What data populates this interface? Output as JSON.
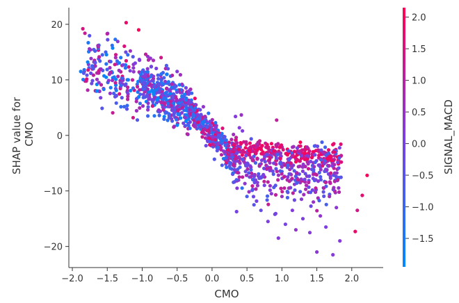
{
  "chart_data": {
    "type": "scatter",
    "title": "",
    "xlabel": "CMO",
    "ylabel_lines": [
      "SHAP value for",
      "CMO"
    ],
    "xlim": [
      -2.05,
      2.45
    ],
    "ylim": [
      -23.8,
      23.0
    ],
    "x_ticks": [
      -2.0,
      -1.5,
      -1.0,
      -0.5,
      0.0,
      0.5,
      1.0,
      1.5,
      2.0
    ],
    "x_tick_labels": [
      "−2.0",
      "−1.5",
      "−1.0",
      "−0.5",
      "0.0",
      "0.5",
      "1.0",
      "1.5",
      "2.0"
    ],
    "y_ticks": [
      -20,
      -10,
      0,
      10,
      20
    ],
    "y_tick_labels": [
      "−20",
      "−10",
      "0",
      "10",
      "20"
    ],
    "grid": false,
    "marker_size": "small",
    "colorbar": {
      "label": "SIGNAL_MACD",
      "range": [
        -1.95,
        2.15
      ],
      "ticks": [
        -1.5,
        -1.0,
        -0.5,
        0.0,
        0.5,
        1.0,
        1.5,
        2.0
      ],
      "tick_labels": [
        "−1.5",
        "−1.0",
        "−0.5",
        "0.0",
        "0.5",
        "1.0",
        "1.5",
        "2.0"
      ],
      "colormap": [
        "#008afb",
        "#7e3ee0",
        "#ff0052"
      ]
    },
    "series": [
      {
        "points": [
          [
            -1.85,
            19.2,
            1.5
          ],
          [
            -1.82,
            18.4,
            1.2
          ],
          [
            -1.88,
            11.5,
            -1.6
          ],
          [
            -1.83,
            11.8,
            -1.3
          ],
          [
            -1.78,
            13.2,
            -1.7
          ],
          [
            -1.74,
            15.4,
            0.4
          ],
          [
            -1.7,
            12.0,
            -0.6
          ],
          [
            -1.65,
            8.0,
            -1.8
          ],
          [
            -1.62,
            9.5,
            0.2
          ],
          [
            -1.57,
            14.5,
            -0.8
          ],
          [
            -1.55,
            8.3,
            -1.4
          ],
          [
            -1.5,
            18.3,
            1.0
          ],
          [
            -1.47,
            11.0,
            0.5
          ],
          [
            -1.43,
            16.2,
            -1.2
          ],
          [
            -1.4,
            10.5,
            -1.5
          ],
          [
            -1.38,
            14.0,
            0.8
          ],
          [
            -1.35,
            16.9,
            0.3
          ],
          [
            -1.3,
            9.0,
            -1.0
          ],
          [
            -1.27,
            12.7,
            -0.2
          ],
          [
            -1.23,
            20.3,
            1.8
          ],
          [
            -1.2,
            10.0,
            -1.6
          ],
          [
            -1.17,
            15.2,
            0.6
          ],
          [
            -1.13,
            8.5,
            -0.9
          ],
          [
            -1.1,
            13.0,
            0.1
          ],
          [
            -1.05,
            19.0,
            2.0
          ],
          [
            -1.02,
            11.0,
            -1.3
          ],
          [
            -0.98,
            9.5,
            -0.4
          ],
          [
            -0.95,
            14.6,
            1.1
          ],
          [
            -0.9,
            7.8,
            -1.7
          ],
          [
            -0.87,
            12.4,
            0.0
          ],
          [
            -0.84,
            13.5,
            0.7
          ],
          [
            -0.8,
            8.2,
            -1.5
          ],
          [
            -0.77,
            10.2,
            -0.6
          ],
          [
            -0.73,
            14.0,
            1.4
          ],
          [
            -0.7,
            6.5,
            -1.1
          ],
          [
            -0.67,
            9.7,
            0.3
          ],
          [
            -0.63,
            12.0,
            -0.3
          ],
          [
            -0.6,
            7.5,
            -1.8
          ],
          [
            -0.57,
            10.8,
            0.9
          ],
          [
            -0.53,
            8.8,
            -0.7
          ],
          [
            -0.5,
            11.5,
            0.2
          ],
          [
            -0.47,
            5.8,
            -1.4
          ],
          [
            -0.43,
            9.2,
            0.5
          ],
          [
            -0.4,
            7.0,
            -0.9
          ],
          [
            -0.37,
            4.5,
            -1.6
          ],
          [
            -0.33,
            8.0,
            0.1
          ],
          [
            -0.3,
            6.0,
            -0.5
          ],
          [
            -0.27,
            3.8,
            -1.2
          ],
          [
            -0.23,
            5.5,
            0.4
          ],
          [
            -0.2,
            3.0,
            -1.0
          ],
          [
            -0.17,
            4.6,
            -0.2
          ],
          [
            -0.13,
            2.2,
            -1.5
          ],
          [
            -0.1,
            3.4,
            0.6
          ],
          [
            -0.07,
            1.5,
            -0.8
          ],
          [
            -0.03,
            2.5,
            0.0
          ],
          [
            0.0,
            0.5,
            -1.3
          ],
          [
            0.02,
            1.0,
            0.8
          ],
          [
            0.05,
            -0.8,
            1.5
          ],
          [
            0.08,
            -1.5,
            0.3
          ],
          [
            0.1,
            -0.3,
            -0.6
          ],
          [
            0.13,
            -2.2,
            1.0
          ],
          [
            0.15,
            -1.0,
            -1.4
          ],
          [
            0.18,
            -3.0,
            0.5
          ],
          [
            0.2,
            -4.0,
            -0.9
          ],
          [
            0.23,
            -2.6,
            1.7
          ],
          [
            0.25,
            -5.5,
            -0.4
          ],
          [
            0.28,
            -3.5,
            0.1
          ],
          [
            0.3,
            -6.8,
            -1.1
          ],
          [
            0.33,
            -4.2,
            1.2
          ],
          [
            0.35,
            -8.0,
            -0.7
          ],
          [
            0.38,
            -2.5,
            1.9
          ],
          [
            0.4,
            -5.0,
            0.4
          ],
          [
            0.43,
            -9.5,
            -1.2
          ],
          [
            0.45,
            -3.0,
            1.4
          ],
          [
            0.48,
            -6.5,
            -0.2
          ],
          [
            0.5,
            -11.0,
            -0.8
          ],
          [
            0.53,
            -2.8,
            2.0
          ],
          [
            0.55,
            -7.5,
            0.6
          ],
          [
            0.58,
            -4.5,
            1.0
          ],
          [
            0.6,
            -12.5,
            -0.5
          ],
          [
            0.63,
            -3.2,
            1.6
          ],
          [
            0.65,
            -8.5,
            0.2
          ],
          [
            0.68,
            -5.5,
            0.9
          ],
          [
            0.7,
            -13.5,
            -0.3
          ],
          [
            0.73,
            -3.0,
            1.8
          ],
          [
            0.75,
            -9.0,
            0.0
          ],
          [
            0.78,
            -6.0,
            1.1
          ],
          [
            0.8,
            -15.5,
            0.1
          ],
          [
            0.83,
            -4.0,
            1.5
          ],
          [
            0.85,
            -10.5,
            0.3
          ],
          [
            0.88,
            -2.8,
            1.9
          ],
          [
            0.9,
            -14.2,
            -0.1
          ],
          [
            0.93,
            -6.5,
            1.0
          ],
          [
            0.95,
            -18.5,
            0.2
          ],
          [
            0.98,
            -4.2,
            1.7
          ],
          [
            1.0,
            -11.0,
            0.5
          ],
          [
            1.03,
            -7.5,
            1.2
          ],
          [
            1.05,
            -16.0,
            0.0
          ],
          [
            1.08,
            -3.5,
            2.0
          ],
          [
            1.1,
            -9.5,
            0.7
          ],
          [
            1.13,
            -5.0,
            1.4
          ],
          [
            1.15,
            -13.5,
            0.2
          ],
          [
            1.18,
            -2.9,
            1.8
          ],
          [
            1.2,
            -17.0,
            0.4
          ],
          [
            1.23,
            -8.0,
            1.1
          ],
          [
            1.25,
            -4.6,
            1.6
          ],
          [
            1.28,
            -11.5,
            0.3
          ],
          [
            1.3,
            -15.0,
            0.1
          ],
          [
            1.33,
            -3.2,
            2.0
          ],
          [
            1.35,
            -9.0,
            0.8
          ],
          [
            1.38,
            -6.0,
            1.3
          ],
          [
            1.4,
            -17.5,
            0.2
          ],
          [
            1.43,
            -4.0,
            1.9
          ],
          [
            1.45,
            -12.0,
            0.5
          ],
          [
            1.48,
            -7.0,
            1.2
          ],
          [
            1.5,
            -21.0,
            0.3
          ],
          [
            1.53,
            -3.6,
            1.7
          ],
          [
            1.55,
            -14.5,
            0.4
          ],
          [
            1.58,
            -5.5,
            1.5
          ],
          [
            1.6,
            -9.5,
            0.9
          ],
          [
            1.63,
            -16.5,
            0.1
          ],
          [
            1.65,
            -4.2,
            2.0
          ],
          [
            1.68,
            -11.0,
            0.6
          ],
          [
            1.7,
            -6.8,
            1.4
          ],
          [
            1.73,
            -21.5,
            0.2
          ],
          [
            1.75,
            -3.0,
            1.8
          ],
          [
            1.78,
            -13.0,
            0.3
          ],
          [
            1.8,
            -8.0,
            1.1
          ],
          [
            1.83,
            -19.0,
            0.2
          ],
          [
            1.85,
            -4.8,
            1.6
          ],
          [
            2.05,
            -17.3,
            1.8
          ],
          [
            2.08,
            -13.5,
            1.4
          ],
          [
            2.15,
            -10.8,
            1.7
          ],
          [
            2.22,
            -7.2,
            2.0
          ]
        ],
        "cloud": [
          {
            "x0": -1.85,
            "x1": -1.05,
            "yAtX0": 13.0,
            "slope": -5.0,
            "sd": 2.8,
            "cmin": -1.9,
            "cmax": 1.6,
            "n": 150
          },
          {
            "x0": -1.05,
            "x1": -0.3,
            "yAtX0": 9.5,
            "slope": -7.0,
            "sd": 2.1,
            "cmin": -1.9,
            "cmax": 1.3,
            "n": 380
          },
          {
            "x0": -0.3,
            "x1": 0.35,
            "yAtX0": 4.5,
            "slope": -14.0,
            "sd": 1.5,
            "cmin": -1.7,
            "cmax": 1.9,
            "n": 320
          },
          {
            "x0": 0.3,
            "x1": 1.85,
            "yAtX0": -2.5,
            "slope": -0.8,
            "sd": 0.9,
            "cmin": 1.0,
            "cmax": 2.1,
            "n": 200
          },
          {
            "x0": 0.3,
            "x1": 1.85,
            "yAtX0": -5.0,
            "slope": -1.5,
            "sd": 2.6,
            "cmin": -0.9,
            "cmax": 1.2,
            "n": 330
          }
        ]
      }
    ]
  }
}
